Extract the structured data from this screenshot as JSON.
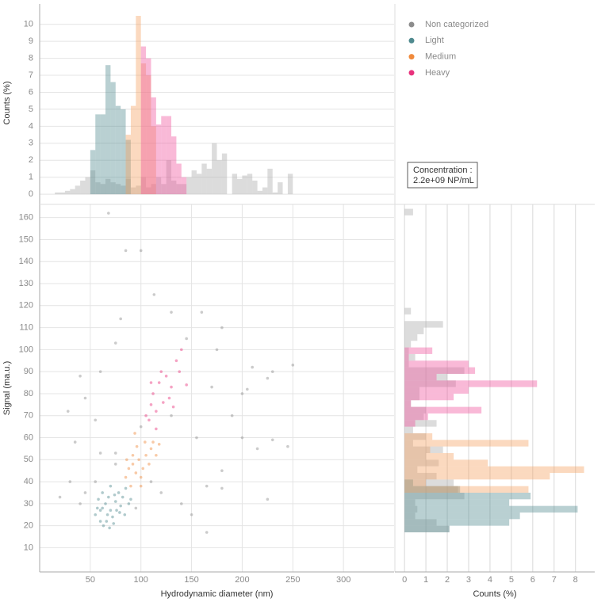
{
  "chart_data": [
    {
      "type": "histogram",
      "orientation": "vertical",
      "ylabel": "Counts (%)",
      "ylim": [
        -0.6,
        11.2
      ],
      "yticks": [
        0,
        1,
        2,
        3,
        4,
        5,
        6,
        7,
        8,
        9,
        10
      ],
      "grid": true,
      "opacity": 0.4,
      "bins": [
        15,
        20,
        25,
        30,
        35,
        40,
        45,
        50,
        55,
        60,
        65,
        70,
        75,
        80,
        85,
        90,
        95,
        100,
        105,
        110,
        115,
        120,
        125,
        130,
        135,
        140,
        145,
        150,
        155,
        160,
        165,
        170,
        175,
        180,
        185,
        190,
        195,
        200,
        205,
        210,
        215,
        220,
        225,
        230,
        235,
        240,
        245,
        250,
        255,
        260
      ],
      "series": [
        {
          "color": "#a8a8a8",
          "values": [
            0.1,
            0.1,
            0.2,
            0.3,
            0.5,
            0.8,
            1.0,
            1.4,
            0.7,
            0.6,
            0.9,
            0.7,
            0.6,
            0.5,
            0.9,
            0.4,
            0.5,
            1.0,
            0.4,
            0.6,
            1.0,
            0.6,
            2.0,
            0.8,
            0.6,
            0.6,
            1.0,
            1.4,
            1.2,
            1.8,
            1.5,
            3.0,
            2.0,
            2.4,
            0,
            1.2,
            0.9,
            1.1,
            1.2,
            0.8,
            0.2,
            0.4,
            1.5,
            0.1,
            0.7,
            0,
            1.2,
            0,
            0
          ]
        },
        {
          "color": "#4f8a8f",
          "values": [
            0,
            0,
            0,
            0,
            0,
            0,
            0,
            2.6,
            4.7,
            4.7,
            7.6,
            6.6,
            5.2,
            5.0,
            3.2,
            0,
            0,
            0,
            0,
            0,
            0,
            0,
            0,
            0,
            0,
            0,
            0,
            0,
            0,
            0,
            0,
            0,
            0,
            0,
            0,
            0,
            0,
            0,
            0,
            0,
            0,
            0,
            0,
            0,
            0,
            0,
            0,
            0,
            0
          ]
        },
        {
          "color": "#f5a060",
          "values": [
            0,
            0,
            0,
            0,
            0,
            0,
            0,
            0,
            0,
            0,
            0,
            0,
            0,
            0,
            3.5,
            5.2,
            10.5,
            7.7,
            7.0,
            4.0,
            0,
            0,
            0,
            0,
            0,
            0,
            0,
            0,
            0,
            0,
            0,
            0,
            0,
            0,
            0,
            0,
            0,
            0,
            0,
            0,
            0,
            0,
            0,
            0,
            0,
            0,
            0,
            0,
            0
          ]
        },
        {
          "color": "#f0509a",
          "values": [
            0,
            0,
            0,
            0,
            0,
            0,
            0,
            0,
            0,
            0,
            0,
            0,
            0,
            0,
            0,
            0,
            0,
            8.7,
            8.0,
            5.7,
            4.1,
            4.6,
            4.6,
            3.4,
            1.8,
            1.0,
            0,
            0,
            0,
            0,
            0,
            0,
            0,
            0,
            0,
            0,
            0,
            0,
            0,
            0,
            0,
            0,
            0,
            0,
            0,
            0,
            0,
            0,
            0
          ]
        }
      ]
    },
    {
      "type": "scatter",
      "xlabel": "Hydrodynamic diameter (nm)",
      "ylabel": "Signal (ma.u.)",
      "xlim": [
        0,
        350
      ],
      "ylim": [
        -1,
        166
      ],
      "xticks": [
        50,
        100,
        150,
        200,
        250,
        300
      ],
      "yticks": [
        10,
        20,
        30,
        40,
        50,
        60,
        70,
        80,
        90,
        100,
        110,
        120,
        130,
        140,
        150,
        160
      ],
      "grid": true,
      "legend": "upper right",
      "opacity": 0.45,
      "annotation": [
        "Concentration :",
        "2.2e+09 NP/mL"
      ],
      "series": [
        {
          "name": "Non categorized",
          "color": "#8c8c8c",
          "x": [
            68,
            85,
            100,
            113,
            130,
            160,
            180,
            80,
            75,
            145,
            175,
            210,
            230,
            250,
            225,
            205,
            200,
            170,
            40,
            45,
            28,
            55,
            35,
            20,
            30,
            45,
            60,
            75,
            120,
            140,
            150,
            165,
            180,
            180,
            165,
            230,
            245,
            225,
            190,
            200,
            215,
            60,
            130,
            100,
            95,
            110,
            75,
            55,
            40,
            155
          ],
          "y": [
            162,
            145,
            145,
            125,
            117,
            117,
            110,
            114,
            103,
            105,
            100,
            92,
            90,
            93,
            87,
            82,
            80,
            83,
            88,
            78,
            72,
            68,
            58,
            33,
            40,
            35,
            53,
            53,
            35,
            30,
            25,
            17,
            45,
            37,
            38,
            59,
            56,
            32,
            70,
            60,
            55,
            90,
            70,
            65,
            28,
            40,
            48,
            40,
            30,
            60
          ]
        },
        {
          "name": "Light",
          "color": "#4f8a8f",
          "x": [
            55,
            60,
            62,
            65,
            68,
            70,
            72,
            75,
            78,
            80,
            58,
            63,
            67,
            73,
            76,
            82,
            85,
            88,
            62,
            70,
            57,
            66,
            79,
            84,
            90,
            60,
            74,
            69
          ],
          "y": [
            25,
            22,
            28,
            30,
            33,
            27,
            24,
            31,
            35,
            29,
            32,
            20,
            25,
            21,
            27,
            33,
            37,
            30,
            35,
            38,
            28,
            22,
            26,
            25,
            32,
            27,
            34,
            19
          ]
        },
        {
          "name": "Medium",
          "color": "#f08a3c",
          "x": [
            85,
            88,
            92,
            95,
            98,
            100,
            102,
            105,
            108,
            110,
            96,
            94,
            90,
            100,
            112,
            115,
            92,
            104,
            118,
            86
          ],
          "y": [
            42,
            46,
            48,
            44,
            50,
            42,
            46,
            52,
            48,
            55,
            56,
            62,
            38,
            38,
            58,
            52,
            52,
            58,
            57,
            50
          ]
        },
        {
          "name": "Heavy",
          "color": "#e8327c",
          "x": [
            105,
            110,
            112,
            115,
            118,
            120,
            125,
            128,
            130,
            135,
            140,
            145,
            108,
            122,
            132,
            115,
            138,
            110
          ],
          "y": [
            70,
            75,
            80,
            72,
            85,
            90,
            88,
            78,
            83,
            95,
            100,
            84,
            68,
            76,
            74,
            64,
            90,
            85
          ]
        }
      ]
    },
    {
      "type": "histogram",
      "orientation": "horizontal",
      "xlabel": "Counts (%)",
      "xlim": [
        -0.45,
        8.9
      ],
      "xticks": [
        0,
        1,
        2,
        3,
        4,
        5,
        6,
        7,
        8
      ],
      "grid": true,
      "opacity": 0.4,
      "bins": [
        17,
        20,
        23,
        26,
        29,
        32,
        35,
        38,
        41,
        44,
        47,
        50,
        53,
        56,
        59,
        62,
        65,
        68,
        71,
        74,
        77,
        80,
        83,
        86,
        89,
        92,
        95,
        98,
        101,
        104,
        107,
        110,
        113,
        116,
        119,
        122,
        125,
        128,
        131,
        134,
        137,
        140,
        143,
        146,
        149,
        152,
        155,
        158,
        161,
        164
      ],
      "series": [
        {
          "color": "#a8a8a8",
          "values": [
            2.1,
            1.5,
            0.5,
            0.6,
            0.5,
            2.8,
            2.5,
            2.3,
            1.5,
            0.6,
            1.6,
            1.0,
            1.8,
            0.4,
            1.0,
            0.4,
            1.5,
            0.9,
            1.0,
            0.3,
            0.7,
            0.7,
            2.4,
            2.0,
            2.8,
            0.2,
            0.5,
            0.2,
            0.3,
            0.6,
            0.9,
            1.8,
            0,
            0.3,
            0,
            0,
            0,
            0,
            0,
            0,
            0,
            0,
            0,
            0,
            0,
            0,
            0,
            0,
            0.4
          ]
        },
        {
          "color": "#4f8a8f",
          "values": [
            2.1,
            4.9,
            5.4,
            8.1,
            4.9,
            5.9,
            2.6,
            0.4,
            0,
            0,
            0,
            0,
            0,
            0,
            0,
            0,
            0,
            0,
            0,
            0,
            0,
            0,
            0,
            0,
            0,
            0,
            0,
            0,
            0,
            0,
            0,
            0,
            0,
            0,
            0,
            0,
            0,
            0,
            0,
            0,
            0,
            0,
            0,
            0,
            0,
            0,
            0,
            0,
            0
          ]
        },
        {
          "color": "#f5a060",
          "values": [
            0,
            0,
            0,
            0,
            0,
            0,
            5.8,
            1.0,
            6.8,
            8.4,
            3.9,
            2.3,
            1.2,
            5.8,
            1.3,
            0,
            0,
            0,
            0,
            0,
            0,
            0,
            0,
            0,
            0,
            0,
            0,
            0,
            0,
            0,
            0,
            0,
            0,
            0,
            0,
            0,
            0,
            0,
            0,
            0,
            0,
            0,
            0,
            0,
            0,
            0,
            0,
            0,
            0
          ]
        },
        {
          "color": "#f0509a",
          "values": [
            0,
            0,
            0,
            0,
            0,
            0,
            0,
            0,
            0,
            0,
            0,
            0,
            0,
            0,
            0,
            0,
            0.5,
            1.1,
            3.6,
            0.3,
            2.3,
            3.0,
            6.2,
            1.5,
            3.3,
            3.0,
            0.2,
            1.3,
            0,
            0,
            0,
            0,
            0,
            0,
            0,
            0,
            0,
            0,
            0,
            0,
            0,
            0,
            0,
            0,
            0,
            0,
            0,
            0,
            0
          ]
        }
      ]
    }
  ]
}
